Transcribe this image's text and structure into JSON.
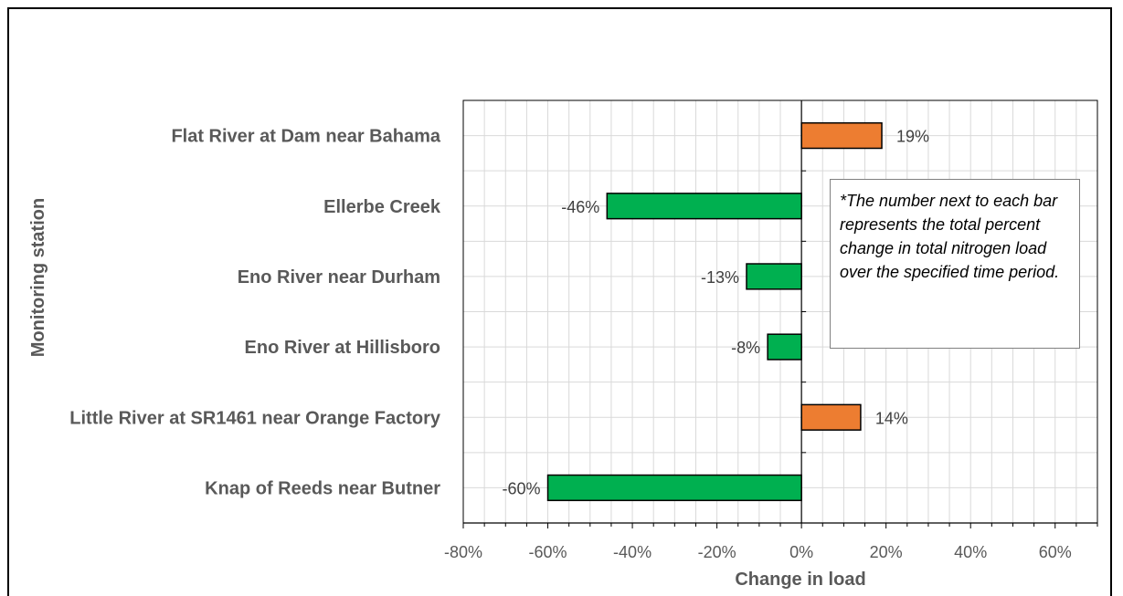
{
  "chart_data": {
    "type": "bar",
    "orientation": "horizontal",
    "categories": [
      "Flat River at Dam near Bahama ",
      "Ellerbe Creek",
      "Eno River near Durham",
      "Eno River at Hillisboro",
      "Little River at SR1461 near Orange Factory",
      "Knap of Reeds near Butner"
    ],
    "values": [
      19,
      -46,
      -13,
      -8,
      14,
      -60
    ],
    "data_labels": [
      "19%",
      "-46%",
      "-13%",
      "-8%",
      "14%",
      "-60%"
    ],
    "xlabel": "Change in load",
    "ylabel": "Monitoring station",
    "xlim": [
      -80,
      70
    ],
    "x_ticks": [
      -80,
      -60,
      -40,
      -20,
      0,
      20,
      40,
      60
    ],
    "x_tick_labels": [
      "-80%",
      "-60%",
      "-40%",
      "-20%",
      "0%",
      "20%",
      "40%",
      "60%"
    ],
    "grid": true,
    "colors": {
      "positive": "#ED7D31",
      "negative": "#00B050",
      "bar_border": "#000000",
      "grid": "#D9D9D9"
    },
    "annotation": "*The number next to each bar represents the total percent change in total nitrogen load over the specified time period."
  }
}
